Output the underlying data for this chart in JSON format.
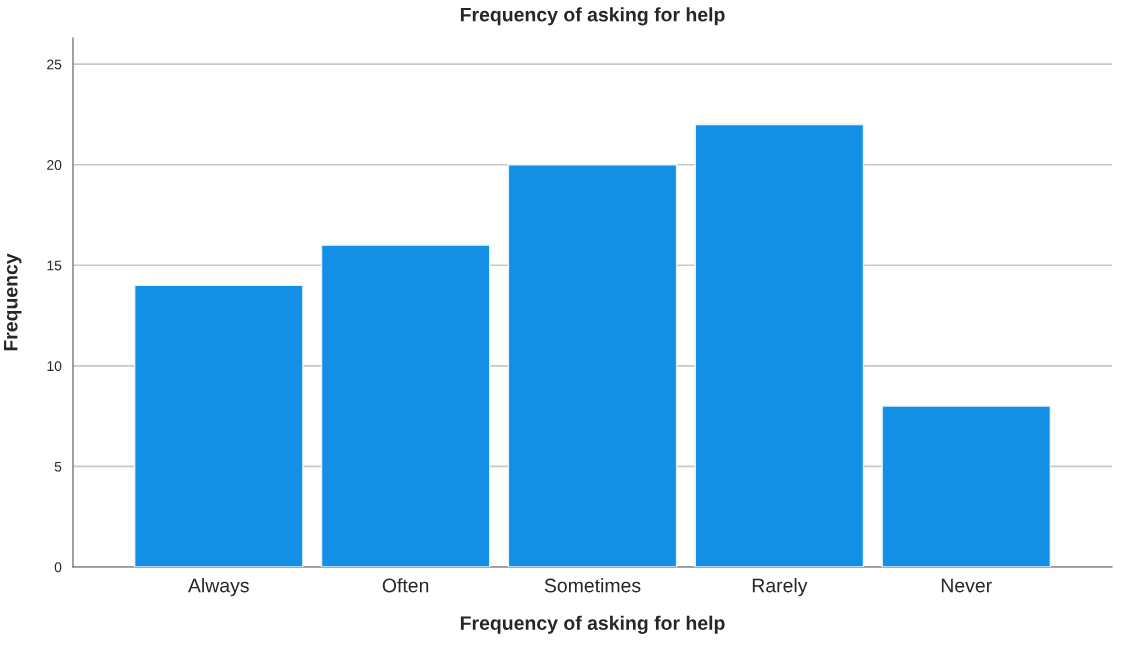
{
  "chart_data": {
    "type": "bar",
    "title": "Frequency of asking for help",
    "xlabel": "Frequency of asking for help",
    "ylabel": "Frequency",
    "categories": [
      "Always",
      "Often",
      "Sometimes",
      "Rarely",
      "Never"
    ],
    "values": [
      14,
      16,
      20,
      22,
      8
    ],
    "color": "#1390e6",
    "ylim": [
      0,
      26.3
    ],
    "yticks": [
      0,
      5,
      10,
      15,
      20,
      25
    ],
    "grid": "y",
    "legend": false
  }
}
